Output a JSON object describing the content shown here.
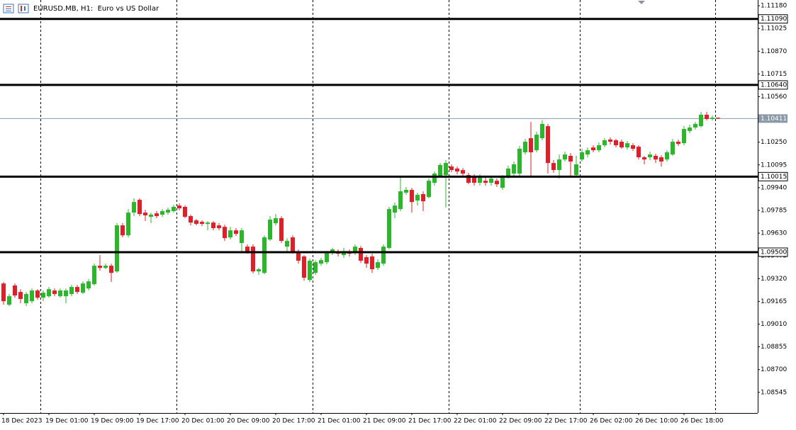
{
  "chart_data": {
    "type": "candlestick",
    "title": "EURUSD.MB, H1:  Euro vs US Dollar",
    "up_color": "#2ab82a",
    "down_color": "#e01f28",
    "categories": [
      "18 Dec 2023",
      null,
      null,
      null,
      null,
      null,
      null,
      null,
      "19 Dec 01:00",
      null,
      null,
      null,
      null,
      null,
      null,
      null,
      "19 Dec 09:00",
      null,
      null,
      null,
      null,
      null,
      null,
      null,
      "19 Dec 17:00",
      null,
      null,
      null,
      null,
      null,
      null,
      null,
      "20 Dec 01:00",
      null,
      null,
      null,
      null,
      null,
      null,
      null,
      "20 Dec 09:00",
      null,
      null,
      null,
      null,
      null,
      null,
      null,
      "20 Dec 17:00",
      null,
      null,
      null,
      null,
      null,
      null,
      null,
      "21 Dec 01:00",
      null,
      null,
      null,
      null,
      null,
      null,
      null,
      "21 Dec 09:00",
      null,
      null,
      null,
      null,
      null,
      null,
      null,
      "21 Dec 17:00",
      null,
      null,
      null,
      null,
      null,
      null,
      null,
      "22 Dec 01:00",
      null,
      null,
      null,
      null,
      null,
      null,
      null,
      "22 Dec 09:00",
      null,
      null,
      null,
      null,
      null,
      null,
      null,
      "22 Dec 17:00",
      null,
      null,
      null,
      null,
      null,
      null,
      null,
      "26 Dec 02:00",
      null,
      null,
      null,
      null,
      null,
      null,
      null,
      "26 Dec 10:00",
      null,
      null,
      null,
      null,
      null,
      null,
      null,
      "26 Dec 18:00",
      null,
      null,
      null,
      null,
      null,
      null
    ],
    "open": [
      1.09287,
      1.09142,
      1.09273,
      1.09229,
      1.09152,
      1.09166,
      1.09239,
      1.0919,
      1.092,
      1.09239,
      1.092,
      1.092,
      1.09215,
      1.09263,
      1.09224,
      1.09253,
      1.09282,
      1.09408,
      1.09393,
      1.09408,
      1.09369,
      1.09683,
      1.09615,
      1.0977,
      1.09857,
      1.0977,
      1.09741,
      1.09765,
      1.09756,
      1.0977,
      1.0978,
      1.09818,
      1.09809,
      1.09746,
      1.09717,
      1.09707,
      1.09693,
      1.09702,
      1.09683,
      1.09673,
      1.09601,
      1.09649,
      1.09563,
      1.09538,
      1.09538,
      1.09369,
      1.09359,
      1.09587,
      1.09698,
      1.09732,
      1.09538,
      1.09601,
      1.09504,
      1.09471,
      1.09311,
      1.09359,
      1.09422,
      1.09432,
      1.095,
      1.09504,
      1.0948,
      1.09504,
      1.09504,
      1.09529,
      1.09466,
      1.09471,
      1.09393,
      1.09422,
      1.09529,
      1.0977,
      1.09794,
      1.09906,
      1.09925,
      1.09852,
      1.09896,
      1.09876,
      1.09973,
      1.10021,
      1.10026,
      1.10084,
      1.1007,
      1.1006,
      1.10026,
      1.10012,
      1.09973,
      1.09987,
      1.09973,
      1.09987,
      1.09939,
      1.10012,
      1.10036,
      1.10036,
      1.10181,
      1.10277,
      1.10195,
      1.10277,
      1.10359,
      1.10108,
      1.1006,
      1.10132,
      1.10157,
      1.10026,
      1.10132,
      1.10166,
      1.10214,
      1.10195,
      1.10229,
      1.10268,
      1.10263,
      1.10253,
      1.10214,
      1.10229,
      1.10219,
      1.10147,
      1.10147,
      1.10157,
      1.10147,
      1.10132,
      1.10166,
      1.10253,
      1.10243,
      1.10326,
      1.1035,
      1.10359,
      1.10437,
      1.10408,
      1.10417
    ],
    "high": [
      1.09297,
      1.09215,
      1.09287,
      1.09248,
      1.09229,
      1.09253,
      1.09248,
      1.09239,
      1.09263,
      1.09253,
      1.09253,
      1.09253,
      1.09277,
      1.09277,
      1.09301,
      1.09316,
      1.09422,
      1.0948,
      1.09422,
      1.09422,
      1.09698,
      1.09698,
      1.09794,
      1.09867,
      1.09867,
      1.09789,
      1.0977,
      1.0978,
      1.09794,
      1.09804,
      1.09823,
      1.09833,
      1.09818,
      1.09756,
      1.09727,
      1.09717,
      1.09712,
      1.09712,
      1.09698,
      1.09688,
      1.09673,
      1.09664,
      1.09664,
      1.09553,
      1.09553,
      1.09393,
      1.09615,
      1.09746,
      1.0976,
      1.09746,
      1.09596,
      1.09615,
      1.09519,
      1.0948,
      1.09456,
      1.09446,
      1.09461,
      1.09509,
      1.09529,
      1.09519,
      1.09529,
      1.09519,
      1.09553,
      1.09543,
      1.0948,
      1.0949,
      1.09451,
      1.09553,
      1.09809,
      1.09838,
      1.10012,
      1.09944,
      1.09939,
      1.09906,
      1.09915,
      1.10002,
      1.1005,
      1.10108,
      1.10128,
      1.10099,
      1.10084,
      1.10074,
      1.10041,
      1.10031,
      1.10031,
      1.10012,
      1.10021,
      1.10002,
      1.10026,
      1.10089,
      1.10118,
      1.10224,
      1.10272,
      1.10388,
      1.10321,
      1.10398,
      1.10374,
      1.10128,
      1.10166,
      1.10185,
      1.10176,
      1.10157,
      1.10205,
      1.10214,
      1.10229,
      1.10248,
      1.10277,
      1.10282,
      1.10272,
      1.10268,
      1.10258,
      1.10243,
      1.10229,
      1.10157,
      1.10185,
      1.10171,
      1.10161,
      1.10195,
      1.10272,
      1.10268,
      1.10359,
      1.10369,
      1.10388,
      1.10456,
      1.10456,
      1.10432,
      1.10417
    ],
    "low": [
      1.09142,
      1.09132,
      1.0919,
      1.09152,
      1.09132,
      1.09152,
      1.09176,
      1.09166,
      1.0919,
      1.092,
      1.0919,
      1.09152,
      1.092,
      1.09215,
      1.09215,
      1.09239,
      1.09273,
      1.09374,
      1.09384,
      1.09297,
      1.09359,
      1.09601,
      1.09601,
      1.09746,
      1.09746,
      1.09712,
      1.09698,
      1.09732,
      1.09741,
      1.09756,
      1.0977,
      1.09785,
      1.09732,
      1.09683,
      1.09683,
      1.09678,
      1.09649,
      1.09649,
      1.09649,
      1.09577,
      1.09587,
      1.09611,
      1.09504,
      1.0949,
      1.09355,
      1.09345,
      1.0935,
      1.09577,
      1.09683,
      1.09563,
      1.09504,
      1.0949,
      1.09422,
      1.09306,
      1.09297,
      1.09345,
      1.09408,
      1.09418,
      1.0948,
      1.09471,
      1.09461,
      1.09471,
      1.0948,
      1.09427,
      1.09393,
      1.09359,
      1.09379,
      1.09408,
      1.09519,
      1.09732,
      1.0978,
      1.09891,
      1.0977,
      1.09818,
      1.0978,
      1.09867,
      1.09954,
      1.10012,
      1.09804,
      1.10045,
      1.10031,
      1.10021,
      1.09963,
      1.09954,
      1.09954,
      1.09954,
      1.09954,
      1.09944,
      1.09925,
      1.10002,
      1.10021,
      1.10021,
      1.10166,
      1.10021,
      1.10181,
      1.10263,
      1.10036,
      1.10041,
      1.10002,
      1.10118,
      1.10012,
      1.10012,
      1.10118,
      1.10147,
      1.10181,
      1.10181,
      1.10214,
      1.10234,
      1.10214,
      1.10205,
      1.102,
      1.1019,
      1.10132,
      1.10099,
      1.10128,
      1.10108,
      1.10084,
      1.10118,
      1.10157,
      1.10224,
      1.10229,
      1.10311,
      1.10335,
      1.1035,
      1.10398,
      1.10398,
      1.10408
    ],
    "close": [
      1.09166,
      1.092,
      1.09205,
      1.09181,
      1.09215,
      1.09239,
      1.0919,
      1.09224,
      1.09248,
      1.09215,
      1.09239,
      1.09239,
      1.09263,
      1.09229,
      1.09287,
      1.09301,
      1.09408,
      1.09393,
      1.09408,
      1.09359,
      1.09683,
      1.09615,
      1.0977,
      1.09842,
      1.0976,
      1.09751,
      1.09756,
      1.09746,
      1.0978,
      1.09789,
      1.09809,
      1.09799,
      1.09741,
      1.09702,
      1.09693,
      1.09693,
      1.09702,
      1.09664,
      1.09664,
      1.09596,
      1.09649,
      1.09625,
      1.09649,
      1.09504,
      1.09369,
      1.09384,
      1.09601,
      1.09722,
      1.09732,
      1.09577,
      1.09577,
      1.09504,
      1.09442,
      1.09326,
      1.09442,
      1.09432,
      1.09446,
      1.09495,
      1.09519,
      1.0949,
      1.09504,
      1.0949,
      1.09538,
      1.09442,
      1.09422,
      1.09384,
      1.09432,
      1.09538,
      1.09794,
      1.09818,
      1.09915,
      1.09925,
      1.09842,
      1.09891,
      1.09847,
      1.09987,
      1.10036,
      1.10094,
      1.10108,
      1.1006,
      1.1005,
      1.10036,
      1.09973,
      1.09973,
      1.10012,
      1.09973,
      1.10002,
      1.09963,
      1.10012,
      1.1007,
      1.10099,
      1.10205,
      1.10253,
      1.10181,
      1.10301,
      1.10374,
      1.10108,
      1.1006,
      1.10132,
      1.10166,
      1.10118,
      1.10099,
      1.10181,
      1.10195,
      1.10195,
      1.10229,
      1.10263,
      1.10253,
      1.10229,
      1.10214,
      1.10243,
      1.10205,
      1.10147,
      1.10132,
      1.10166,
      1.10132,
      1.10118,
      1.10181,
      1.10253,
      1.10238,
      1.1034,
      1.1035,
      1.10374,
      1.10437,
      1.10408,
      1.10417,
      1.10411
    ],
    "ylim": [
      1.08404,
      1.11219
    ],
    "yticks": [
      {
        "value": 1.1118,
        "label": "1.11180"
      },
      {
        "value": 1.11025,
        "label": "1.11025"
      },
      {
        "value": 1.1087,
        "label": "1.10870"
      },
      {
        "value": 1.10715,
        "label": "1.10715"
      },
      {
        "value": 1.1056,
        "label": "1.10560"
      },
      {
        "value": 1.1025,
        "label": "1.10250"
      },
      {
        "value": 1.10095,
        "label": "1.10095"
      },
      {
        "value": 1.0994,
        "label": "1.09940"
      },
      {
        "value": 1.09785,
        "label": "1.09785"
      },
      {
        "value": 1.0963,
        "label": "1.09630"
      },
      {
        "value": 1.09475,
        "label": "1.09475"
      },
      {
        "value": 1.0932,
        "label": "1.09320"
      },
      {
        "value": 1.09165,
        "label": "1.09165"
      },
      {
        "value": 1.0901,
        "label": "1.09010"
      },
      {
        "value": 1.08855,
        "label": "1.08855"
      },
      {
        "value": 1.087,
        "label": "1.08700"
      },
      {
        "value": 1.08545,
        "label": "1.08545"
      }
    ],
    "levels": [
      {
        "value": 1.1109,
        "label": "1.11090"
      },
      {
        "value": 1.1064,
        "label": "1.10640"
      },
      {
        "value": 1.10015,
        "label": "1.10015"
      },
      {
        "value": 1.095,
        "label": "1.09500"
      }
    ],
    "current_price": {
      "value": 1.10411,
      "label": "1.10411"
    }
  }
}
